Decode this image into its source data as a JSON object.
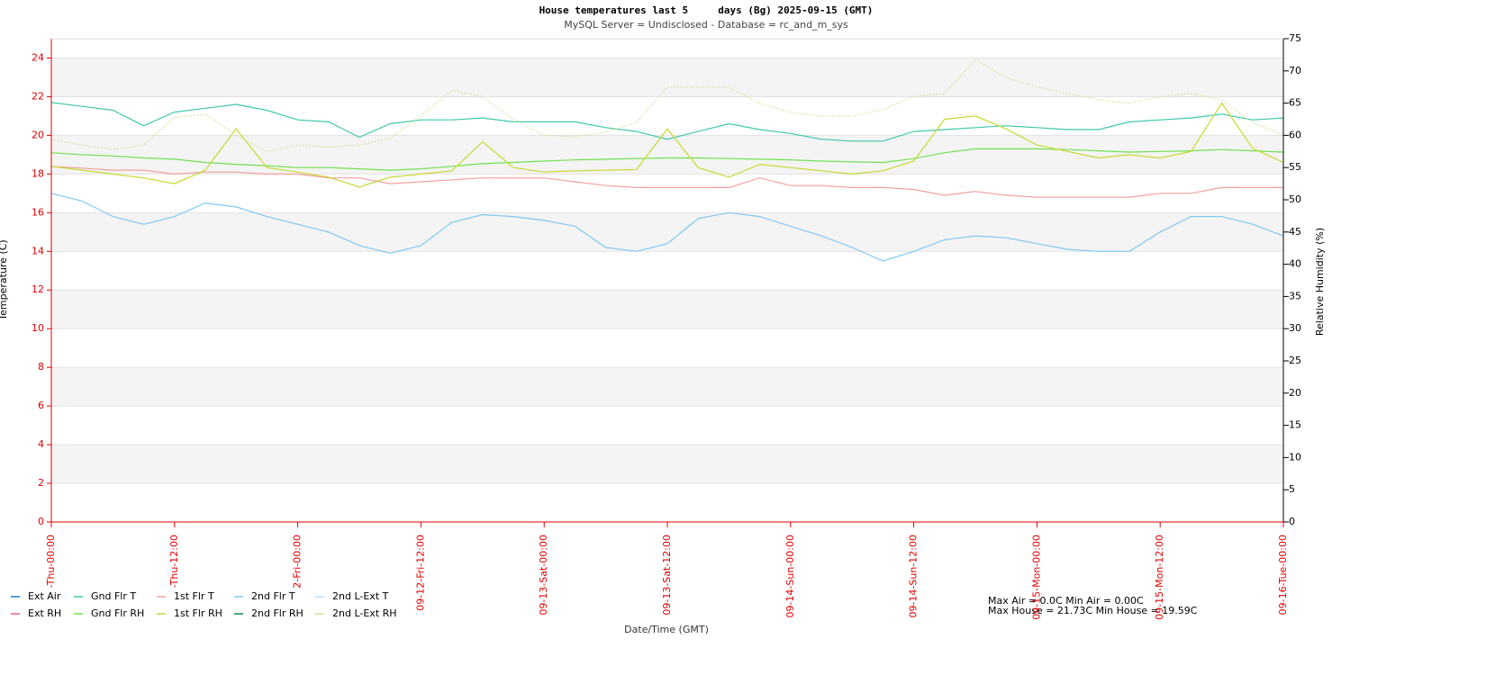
{
  "chart_data": {
    "type": "line",
    "title": "House temperatures last 5     days (Bg) 2025-09-15 (GMT)",
    "subtitle": "MySQL Server = Undisclosed - Database = rc_and_m_sys",
    "ylabel": "Temperature (C)",
    "y2label": "Relative Humidity (%)",
    "xlabel": "Date/Time (GMT)",
    "annotations": [
      "Max Air = 0.0C Min Air = 0.00C",
      "Max House = 21.73C Min House = 19.59C"
    ],
    "grid": true,
    "x": [
      0,
      3,
      6,
      9,
      12,
      15,
      18,
      21,
      24,
      27,
      30,
      33,
      36,
      39,
      42,
      45,
      48,
      51,
      54,
      57,
      60,
      63,
      66,
      69,
      72,
      75,
      78,
      81,
      84,
      87,
      90,
      93,
      96,
      99,
      102,
      105,
      108,
      111,
      114,
      117,
      120
    ],
    "xlim": [
      0,
      120
    ],
    "xticks": [
      {
        "value": 0,
        "label": "-Thu-00:00"
      },
      {
        "value": 12,
        "label": "-Thu-12:00"
      },
      {
        "value": 24,
        "label": "2-Fri-00:00"
      },
      {
        "value": 36,
        "label": "09-12-Fri-12:00"
      },
      {
        "value": 48,
        "label": "09-13-Sat-00:00"
      },
      {
        "value": 60,
        "label": "09-13-Sat-12:00"
      },
      {
        "value": 72,
        "label": "09-14-Sun-00:00"
      },
      {
        "value": 84,
        "label": "09-14-Sun-12:00"
      },
      {
        "value": 96,
        "label": "09-15-Mon-00:00"
      },
      {
        "value": 108,
        "label": "09-15-Mon-12:00"
      },
      {
        "value": 120,
        "label": "09-16-Tue-00:00"
      }
    ],
    "ylim": [
      0,
      25
    ],
    "yticks": [
      0,
      2,
      4,
      6,
      8,
      10,
      12,
      14,
      16,
      18,
      20,
      22,
      24
    ],
    "y2lim": [
      0,
      75
    ],
    "y2ticks": [
      0,
      5,
      10,
      15,
      20,
      25,
      30,
      35,
      40,
      45,
      50,
      55,
      60,
      65,
      70,
      75
    ],
    "series": [
      {
        "name": "Ext Air",
        "color": "#1f77d0",
        "values": [
          null,
          null,
          null,
          null,
          null,
          null,
          null,
          null,
          null,
          null,
          null,
          null,
          null,
          null,
          null,
          null,
          null,
          null,
          null,
          null,
          null,
          null,
          null,
          null,
          null,
          null,
          null,
          null,
          null,
          null,
          null,
          null,
          null,
          null,
          null,
          null,
          null,
          null,
          null,
          null,
          null
        ]
      },
      {
        "name": "Ext RH",
        "color": "#f06080",
        "axis": "y2",
        "values": [
          null,
          null,
          null,
          null,
          null,
          null,
          null,
          null,
          null,
          null,
          null,
          null,
          null,
          null,
          null,
          null,
          null,
          null,
          null,
          null,
          null,
          null,
          null,
          null,
          null,
          null,
          null,
          null,
          null,
          null,
          null,
          null,
          null,
          null,
          null,
          null,
          null,
          null,
          null,
          null,
          null
        ]
      },
      {
        "name": "Gnd Flr T",
        "color": "#40c8a8",
        "values": [
          21.7,
          21.5,
          21.3,
          20.5,
          21.2,
          21.4,
          21.6,
          21.3,
          20.8,
          20.7,
          19.9,
          20.6,
          20.8,
          20.8,
          20.9,
          20.7,
          20.7,
          20.7,
          20.4,
          20.2,
          19.8,
          20.2,
          20.6,
          20.3,
          20.1,
          19.8,
          19.7,
          19.7,
          20.2,
          20.3,
          20.4,
          20.5,
          20.4,
          20.3,
          20.3,
          20.7,
          20.8,
          20.9,
          21.1,
          20.8,
          20.9
        ]
      },
      {
        "name": "Gnd Flr RH",
        "color": "#70e050",
        "axis": "y2",
        "values": [
          57.3,
          57,
          56.8,
          56.5,
          56.3,
          55.8,
          55.5,
          55.3,
          55.0,
          55.0,
          54.8,
          54.6,
          54.8,
          55.2,
          55.6,
          55.8,
          56.0,
          56.2,
          56.3,
          56.4,
          56.5,
          56.5,
          56.4,
          56.3,
          56.2,
          56.0,
          55.9,
          55.8,
          56.4,
          57.3,
          57.9,
          57.9,
          57.9,
          57.8,
          57.6,
          57.4,
          57.5,
          57.6,
          57.8,
          57.6,
          57.4
        ]
      },
      {
        "name": "1st Flr T",
        "color": "#f4a0a0",
        "values": [
          18.4,
          18.3,
          18.2,
          18.2,
          18.0,
          18.1,
          18.1,
          18.0,
          18.0,
          17.8,
          17.8,
          17.5,
          17.6,
          17.7,
          17.8,
          17.8,
          17.8,
          17.6,
          17.4,
          17.3,
          17.3,
          17.3,
          17.3,
          17.8,
          17.4,
          17.4,
          17.3,
          17.3,
          17.2,
          16.9,
          17.1,
          16.9,
          16.8,
          16.8,
          16.8,
          16.8,
          17.0,
          17.0,
          17.3,
          17.3,
          17.3
        ]
      },
      {
        "name": "1st Flr RH",
        "color": "#c8d830",
        "axis": "y2",
        "values": [
          55.2,
          54.6,
          54.0,
          53.4,
          52.5,
          54.6,
          61.0,
          55.0,
          54.3,
          53.5,
          52.0,
          53.5,
          54.0,
          54.5,
          59.0,
          55.0,
          54.3,
          54.5,
          54.6,
          54.7,
          61.0,
          55.0,
          53.5,
          55.5,
          55.0,
          54.5,
          54.0,
          54.5,
          56.0,
          62.5,
          63.0,
          61.0,
          58.5,
          57.5,
          56.5,
          57.0,
          56.5,
          57.5,
          65.0,
          58.0,
          55.8
        ]
      },
      {
        "name": "2nd Flr T",
        "color": "#80c8f0",
        "values": [
          17.0,
          16.6,
          15.8,
          15.4,
          15.8,
          16.5,
          16.3,
          15.8,
          15.4,
          15.0,
          14.3,
          13.9,
          14.3,
          15.5,
          15.9,
          15.8,
          15.6,
          15.3,
          14.2,
          14.0,
          14.4,
          15.7,
          16.0,
          15.8,
          15.3,
          14.8,
          14.2,
          13.5,
          14.0,
          14.6,
          14.8,
          14.7,
          14.4,
          14.1,
          14.0,
          14.0,
          15.0,
          15.8,
          15.8,
          15.4,
          14.8
        ]
      },
      {
        "name": "2nd Flr RH",
        "color": "#108850",
        "axis": "y2",
        "values": [
          null,
          null,
          null,
          null,
          null,
          null,
          null,
          null,
          null,
          null,
          null,
          null,
          null,
          null,
          null,
          null,
          null,
          null,
          null,
          null,
          null,
          null,
          null,
          null,
          null,
          null,
          null,
          null,
          null,
          null,
          null,
          null,
          null,
          null,
          null,
          null,
          null,
          null,
          null,
          null,
          null
        ]
      },
      {
        "name": "2nd L-Ext T",
        "color": "#b8dcf8",
        "values": [
          null,
          null,
          null,
          null,
          null,
          null,
          null,
          null,
          null,
          null,
          null,
          null,
          null,
          null,
          null,
          null,
          null,
          null,
          null,
          null,
          null,
          null,
          null,
          null,
          null,
          null,
          null,
          null,
          null,
          null,
          null,
          null,
          null,
          null,
          null,
          null,
          null,
          null,
          null,
          null,
          null
        ]
      },
      {
        "name": "2nd L-Ext RH",
        "color": "#d0e090",
        "axis": "y2",
        "line_style": "dotted",
        "values": [
          59.4,
          58.5,
          57.8,
          58.5,
          62.8,
          63.3,
          60,
          57.5,
          58.5,
          58.2,
          58.5,
          59.5,
          63,
          67,
          66,
          62.5,
          60,
          59.8,
          60.5,
          62,
          67.5,
          67.5,
          67.5,
          65,
          63.5,
          63,
          63,
          64,
          66,
          66.5,
          71.7,
          69,
          67.5,
          66.5,
          65.5,
          65,
          66,
          66.5,
          65.5,
          62,
          60
        ]
      }
    ]
  }
}
